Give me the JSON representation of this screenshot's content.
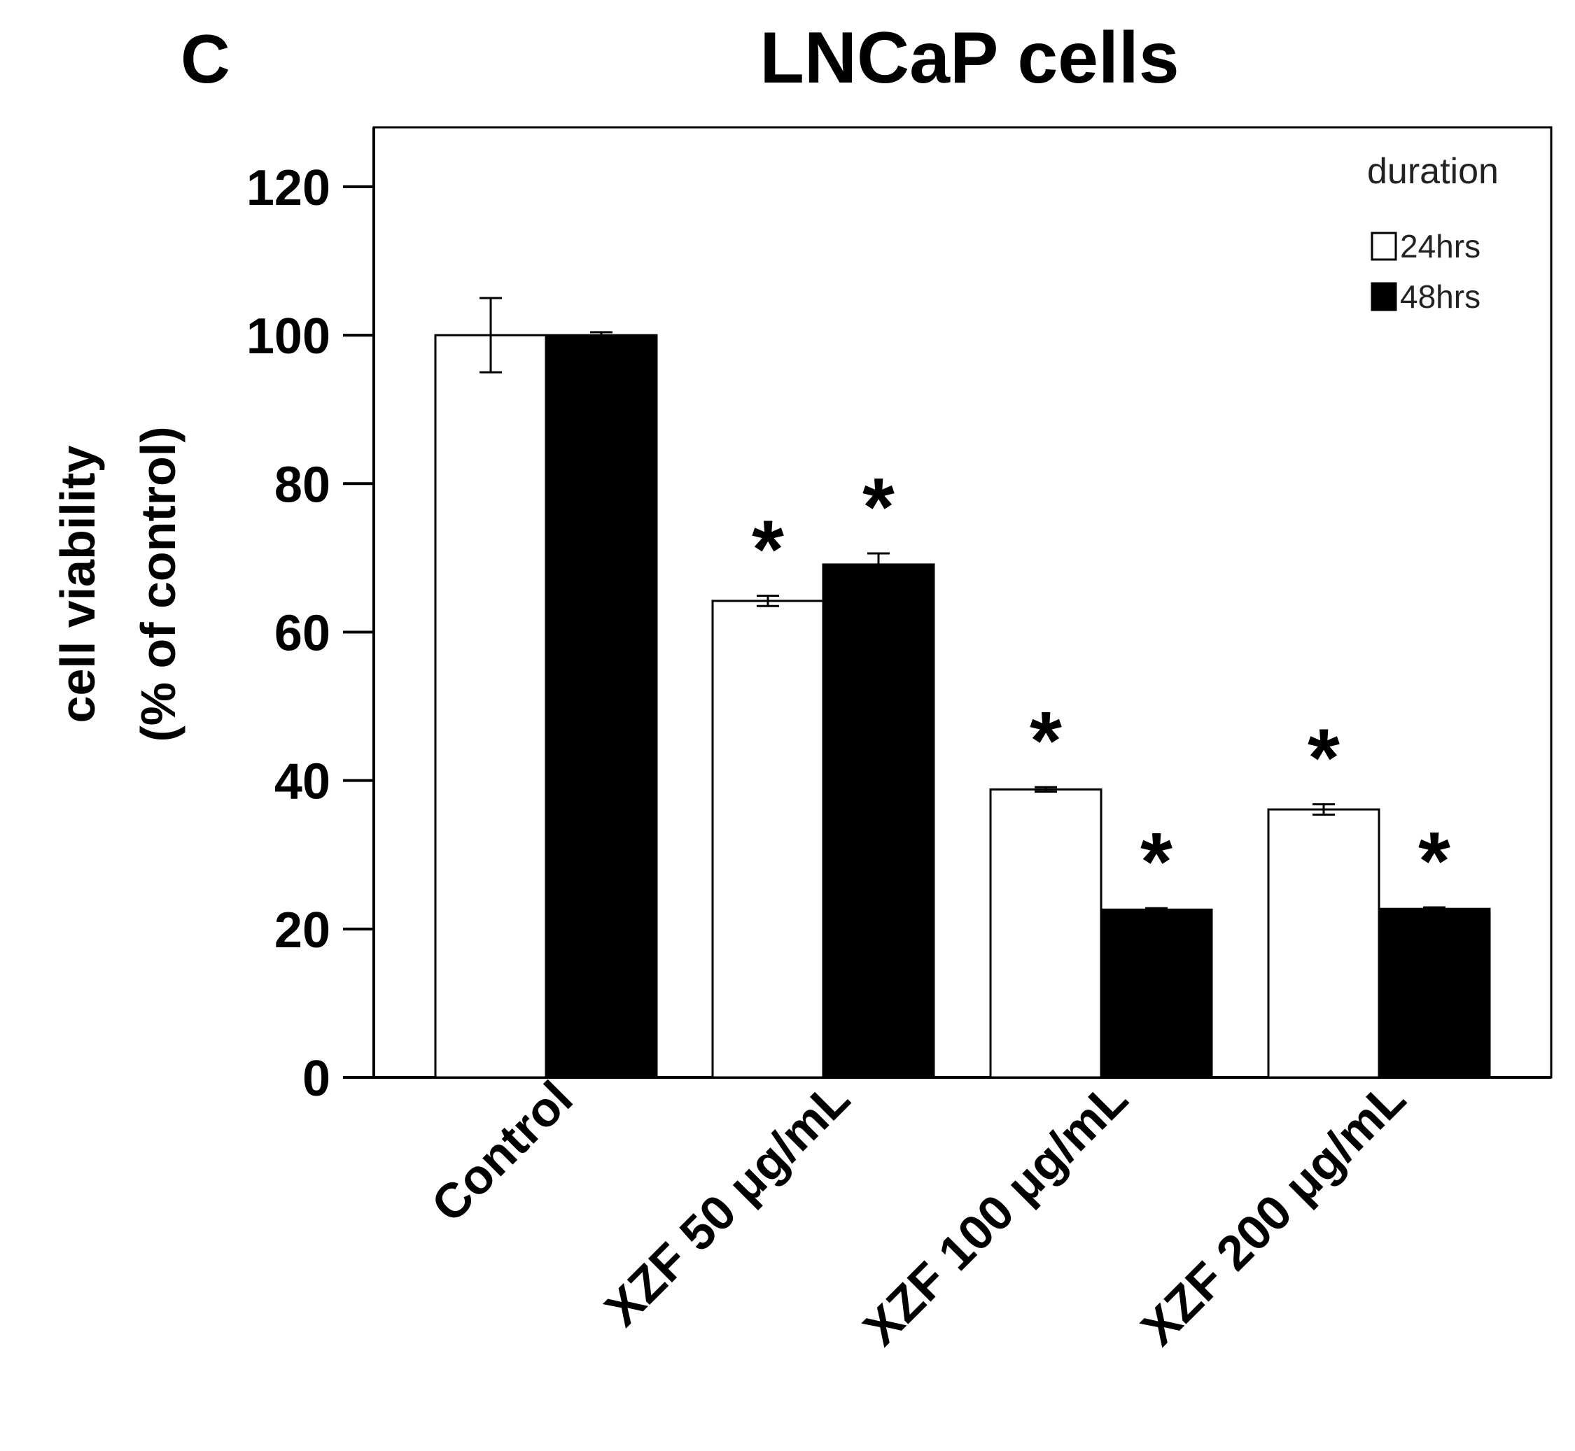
{
  "panel_label": "C",
  "chart_data": {
    "type": "bar",
    "title": "LNCaP cells",
    "ylabel_line1": "cell viability",
    "ylabel_line2": "(% of control)",
    "xlabel": "",
    "ylim": [
      0,
      128
    ],
    "yticks": [
      0,
      20,
      40,
      60,
      80,
      100,
      120
    ],
    "categories": [
      "Control",
      "XZF 50 μg/mL",
      "XZF 100 μg/mL",
      "XZF 200 μg/mL"
    ],
    "legend_title": "duration",
    "legend_position": "top-right",
    "significance_marker": "*",
    "series": [
      {
        "name": "24hrs",
        "color": "#ffffff",
        "values": [
          100,
          64.2,
          38.8,
          36.1
        ],
        "errors": [
          5,
          0.7,
          0.3,
          0.7
        ],
        "significant": [
          false,
          true,
          true,
          true
        ]
      },
      {
        "name": "48hrs",
        "color": "#000000",
        "values": [
          100,
          69.1,
          22.6,
          22.7
        ],
        "errors": [
          0.4,
          1.5,
          0.2,
          0.2
        ],
        "significant": [
          false,
          true,
          true,
          true
        ]
      }
    ]
  }
}
